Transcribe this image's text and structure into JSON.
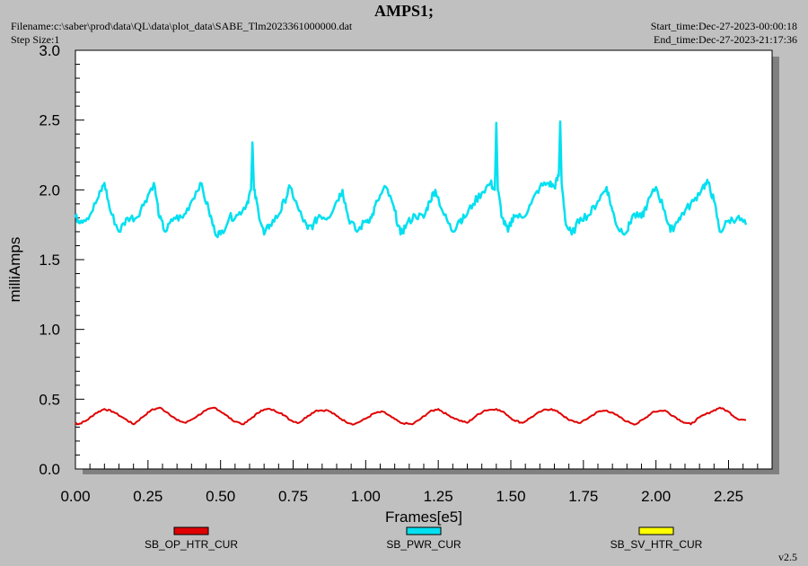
{
  "header": {
    "title": "AMPS1;",
    "filename": "Filename:c:\\saber\\prod\\data\\QL\\data\\plot_data\\SABE_Tlm2023361000000.dat",
    "step_size": "Step Size:1",
    "start_time": "Start_time:Dec-27-2023-00:00:18",
    "end_time": "End_time:Dec-27-2023-21:17:36"
  },
  "version": "v2.5",
  "colors": {
    "background": "#c0c0c0",
    "plot_area": "#ffffff",
    "frame_shadow": "#808080"
  },
  "chart_data": {
    "type": "line",
    "xlabel": "Frames[e5]",
    "ylabel": "milliAmps",
    "xlim": [
      0.0,
      2.4
    ],
    "ylim": [
      0.0,
      3.0
    ],
    "x_ticks": [
      "0.00",
      "0.25",
      "0.50",
      "0.75",
      "1.00",
      "1.25",
      "1.50",
      "1.75",
      "2.00",
      "2.25"
    ],
    "y_ticks": [
      "0.0",
      "0.5",
      "1.0",
      "1.5",
      "2.0",
      "2.5",
      "3.0"
    ],
    "grid": false,
    "legend_position": "bottom",
    "series": [
      {
        "name": "SB_OP_HTR_CUR",
        "color": "#e00000",
        "x": [
          0.0,
          0.01,
          0.04,
          0.07,
          0.1,
          0.13,
          0.17,
          0.2,
          0.23,
          0.26,
          0.29,
          0.32,
          0.35,
          0.38,
          0.42,
          0.45,
          0.48,
          0.51,
          0.54,
          0.58,
          0.61,
          0.64,
          0.67,
          0.71,
          0.74,
          0.77,
          0.8,
          0.83,
          0.87,
          0.9,
          0.93,
          0.96,
          1.0,
          1.03,
          1.06,
          1.09,
          1.12,
          1.16,
          1.19,
          1.22,
          1.25,
          1.28,
          1.32,
          1.35,
          1.38,
          1.41,
          1.45,
          1.48,
          1.51,
          1.54,
          1.57,
          1.61,
          1.64,
          1.67,
          1.7,
          1.74,
          1.77,
          1.8,
          1.83,
          1.86,
          1.9,
          1.93,
          1.96,
          1.99,
          2.03,
          2.06,
          2.09,
          2.12,
          2.15,
          2.19,
          2.22,
          2.25,
          2.28,
          2.31
        ],
        "values": [
          0.33,
          0.32,
          0.35,
          0.4,
          0.43,
          0.41,
          0.36,
          0.32,
          0.37,
          0.42,
          0.44,
          0.4,
          0.35,
          0.33,
          0.38,
          0.42,
          0.44,
          0.4,
          0.35,
          0.32,
          0.37,
          0.42,
          0.43,
          0.4,
          0.35,
          0.33,
          0.38,
          0.42,
          0.42,
          0.38,
          0.34,
          0.32,
          0.36,
          0.4,
          0.41,
          0.37,
          0.33,
          0.32,
          0.36,
          0.41,
          0.43,
          0.39,
          0.35,
          0.33,
          0.38,
          0.42,
          0.43,
          0.4,
          0.35,
          0.33,
          0.37,
          0.42,
          0.43,
          0.4,
          0.35,
          0.33,
          0.37,
          0.41,
          0.42,
          0.39,
          0.34,
          0.32,
          0.36,
          0.41,
          0.42,
          0.38,
          0.34,
          0.32,
          0.37,
          0.41,
          0.44,
          0.41,
          0.36,
          0.35
        ]
      },
      {
        "name": "SB_PWR_CUR",
        "color": "#00e0f0",
        "x": [
          0.0,
          0.02,
          0.05,
          0.08,
          0.1,
          0.12,
          0.15,
          0.18,
          0.21,
          0.24,
          0.27,
          0.29,
          0.31,
          0.34,
          0.37,
          0.4,
          0.43,
          0.46,
          0.48,
          0.5,
          0.53,
          0.56,
          0.59,
          0.605,
          0.61,
          0.615,
          0.63,
          0.65,
          0.67,
          0.7,
          0.72,
          0.74,
          0.77,
          0.8,
          0.82,
          0.84,
          0.87,
          0.9,
          0.92,
          0.94,
          0.97,
          1.0,
          1.02,
          1.04,
          1.07,
          1.1,
          1.12,
          1.14,
          1.17,
          1.2,
          1.22,
          1.24,
          1.27,
          1.3,
          1.32,
          1.34,
          1.37,
          1.4,
          1.43,
          1.445,
          1.45,
          1.455,
          1.47,
          1.49,
          1.51,
          1.54,
          1.57,
          1.6,
          1.63,
          1.65,
          1.665,
          1.67,
          1.675,
          1.69,
          1.71,
          1.74,
          1.77,
          1.8,
          1.83,
          1.85,
          1.87,
          1.9,
          1.92,
          1.95,
          1.97,
          2.0,
          2.03,
          2.05,
          2.08,
          2.1,
          2.13,
          2.16,
          2.18,
          2.2,
          2.22,
          2.25,
          2.28,
          2.31
        ],
        "values": [
          1.8,
          1.78,
          1.82,
          1.95,
          2.05,
          1.85,
          1.7,
          1.8,
          1.8,
          1.92,
          2.05,
          1.8,
          1.7,
          1.8,
          1.8,
          1.92,
          2.05,
          1.85,
          1.7,
          1.68,
          1.8,
          1.82,
          1.9,
          2.0,
          2.34,
          2.0,
          1.85,
          1.68,
          1.75,
          1.82,
          1.92,
          2.02,
          1.85,
          1.72,
          1.75,
          1.82,
          1.8,
          1.92,
          2.0,
          1.8,
          1.7,
          1.78,
          1.8,
          1.92,
          2.02,
          1.85,
          1.68,
          1.75,
          1.82,
          1.8,
          1.92,
          2.0,
          1.82,
          1.7,
          1.78,
          1.8,
          1.9,
          1.98,
          2.05,
          2.0,
          2.48,
          2.0,
          1.8,
          1.7,
          1.82,
          1.8,
          1.9,
          2.02,
          2.05,
          2.02,
          2.1,
          2.49,
          2.05,
          1.75,
          1.68,
          1.8,
          1.82,
          1.92,
          2.02,
          1.85,
          1.72,
          1.7,
          1.82,
          1.8,
          1.9,
          2.02,
          1.85,
          1.7,
          1.8,
          1.85,
          1.92,
          2.02,
          2.05,
          1.92,
          1.7,
          1.78,
          1.8,
          1.75
        ]
      },
      {
        "name": "SB_SV_HTR_CUR",
        "color": "#ffff00",
        "x": [],
        "values": []
      }
    ]
  }
}
